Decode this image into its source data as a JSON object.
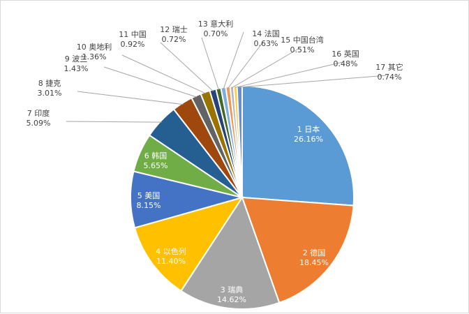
{
  "chart_data": {
    "type": "pie",
    "title": "",
    "categories": [
      "1 日本",
      "2 德国",
      "3 瑞典",
      "4 以色列",
      "5 美国",
      "6 韩国",
      "7 印度",
      "8 捷克",
      "9 波兰",
      "10 奥地利",
      "11 中国",
      "12 瑞士",
      "13 意大利",
      "14 法国",
      "15 中国台湾",
      "16 英国",
      "17 其它"
    ],
    "values": [
      26.16,
      18.45,
      14.62,
      11.4,
      8.15,
      5.65,
      5.09,
      3.01,
      1.43,
      1.36,
      0.92,
      0.72,
      0.7,
      0.63,
      0.51,
      0.48,
      0.74
    ],
    "value_labels": [
      "26.16%",
      "18.45%",
      "14.62%",
      "11.40%",
      "8.15%",
      "5.65%",
      "5.09%",
      "3.01%",
      "1.43%",
      "1.36%",
      "0.92%",
      "0.72%",
      "0.70%",
      "0.63%",
      "0.51%",
      "0.48%",
      "0.74%"
    ],
    "colors": [
      "#5B9BD5",
      "#ED7D31",
      "#A5A5A5",
      "#FFC000",
      "#4472C4",
      "#70AD47",
      "#255E91",
      "#9E480E",
      "#636363",
      "#997300",
      "#264478",
      "#43682B",
      "#7CAFDD",
      "#F1975A",
      "#B7B7B7",
      "#FFCD33",
      "#698ED0"
    ],
    "legend": "none",
    "start_angle": "12 o'clock, clockwise"
  }
}
